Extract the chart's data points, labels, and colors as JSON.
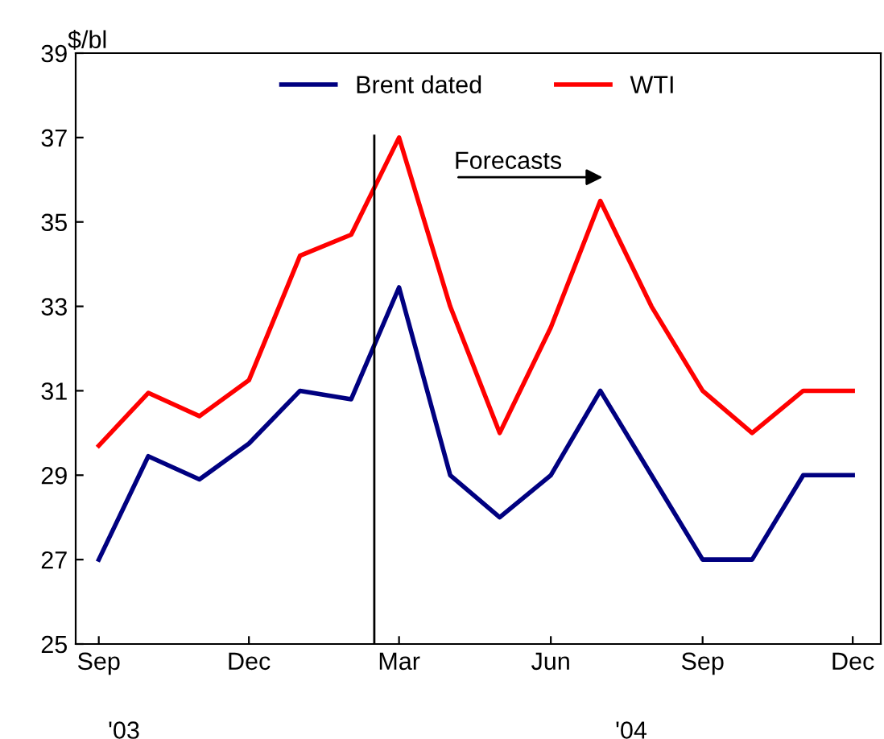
{
  "chart_data": {
    "type": "line",
    "ylabel": "$/bl",
    "x": [
      "2003-09",
      "2003-10",
      "2003-11",
      "2003-12",
      "2004-01",
      "2004-02",
      "2004-03",
      "2004-04",
      "2004-05",
      "2004-06",
      "2004-07",
      "2004-08",
      "2004-09",
      "2004-10",
      "2004-11",
      "2004-12"
    ],
    "series": [
      {
        "name": "Brent dated",
        "color": "#000080",
        "values": [
          27,
          29.45,
          28.9,
          29.75,
          31,
          30.8,
          33.45,
          29,
          28,
          29,
          31,
          29,
          27,
          27,
          29,
          29
        ]
      },
      {
        "name": "WTI",
        "color": "#ff0000",
        "values": [
          29.7,
          30.95,
          30.4,
          31.25,
          34.2,
          34.7,
          37,
          33,
          30,
          32.5,
          35.5,
          33,
          31,
          30,
          31,
          31
        ]
      }
    ],
    "xlim": [
      "2003-08-18",
      "2004-12-18"
    ],
    "xticks": [
      {
        "value": "2003-09",
        "label": "Sep"
      },
      {
        "value": "2003-12",
        "label": "Dec"
      },
      {
        "value": "2004-03",
        "label": "Mar"
      },
      {
        "value": "2004-06",
        "label": "Jun"
      },
      {
        "value": "2004-09",
        "label": "Sep"
      },
      {
        "value": "2004-12",
        "label": "Dec"
      }
    ],
    "ylim": [
      25,
      39
    ],
    "yticks": [
      25,
      27,
      29,
      31,
      33,
      35,
      37,
      39
    ],
    "ref_lines": [
      {
        "axis": "x",
        "value": "2004-02-15",
        "label": null,
        "color": "#000000"
      }
    ],
    "annotations": [
      "Forecasts",
      "'03",
      "'04"
    ],
    "legend": "top",
    "grid": false,
    "marker": "none",
    "line_style": "solid"
  }
}
